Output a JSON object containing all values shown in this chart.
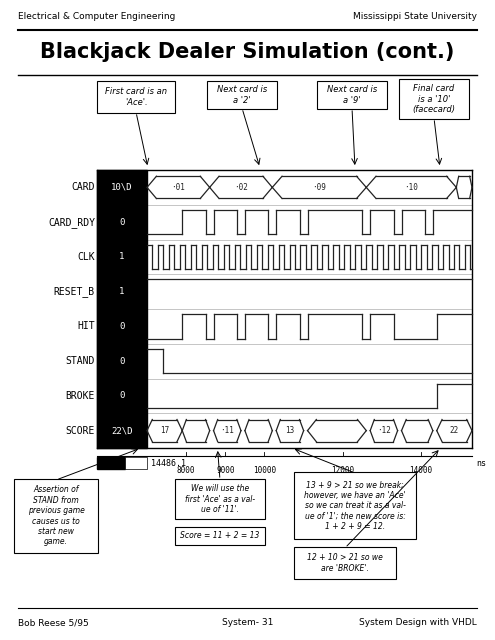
{
  "bg_color": "#ffffff",
  "header_left": "Electrical & Computer Engineering",
  "header_right": "Mississippi State University",
  "title": "Blackjack Dealer Simulation (cont.)",
  "footer_left": "Bob Reese 5/95",
  "footer_center": "System- 31",
  "footer_right": "System Design with VHDL",
  "signals": [
    "CARD",
    "CARD_RDY",
    "CLK",
    "RESET_B",
    "HIT",
    "STAND",
    "BROKE",
    "SCORE"
  ],
  "initial_values": [
    "10\\D",
    "0",
    "1",
    "1",
    "0",
    "0",
    "0",
    "22\\D"
  ],
  "time_labels": [
    "8000",
    "9000",
    "10000",
    "12000",
    "14000"
  ],
  "time_label_t": [
    8000,
    9000,
    10000,
    12000,
    14000
  ],
  "initial_time": "14486.1",
  "time_unit": "ns",
  "t_min": 7000,
  "t_max": 15300
}
